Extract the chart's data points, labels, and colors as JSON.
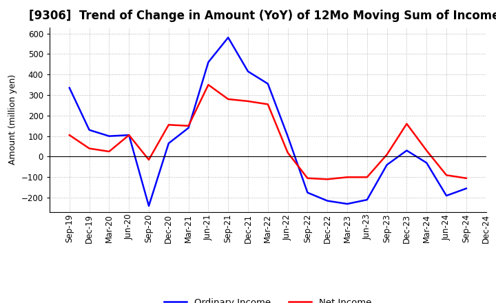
{
  "title": "[9306]  Trend of Change in Amount (YoY) of 12Mo Moving Sum of Incomes",
  "ylabel": "Amount (million yen)",
  "x_labels": [
    "Sep-19",
    "Dec-19",
    "Mar-20",
    "Jun-20",
    "Sep-20",
    "Dec-20",
    "Mar-21",
    "Jun-21",
    "Sep-21",
    "Dec-21",
    "Mar-22",
    "Jun-22",
    "Sep-22",
    "Dec-22",
    "Mar-23",
    "Jun-23",
    "Sep-23",
    "Dec-23",
    "Mar-24",
    "Jun-24",
    "Sep-24",
    "Dec-24"
  ],
  "ordinary_income": [
    335,
    130,
    100,
    105,
    -240,
    65,
    140,
    460,
    580,
    415,
    355,
    100,
    -175,
    -215,
    -230,
    -210,
    -40,
    30,
    -30,
    -190,
    -155,
    null
  ],
  "net_income": [
    105,
    40,
    25,
    105,
    -15,
    155,
    150,
    350,
    280,
    270,
    255,
    20,
    -105,
    -110,
    -100,
    -100,
    10,
    160,
    30,
    -90,
    -105,
    null
  ],
  "ordinary_income_color": "#0000ff",
  "net_income_color": "#ff0000",
  "ylim": [
    -270,
    630
  ],
  "yticks": [
    -200,
    -100,
    0,
    100,
    200,
    300,
    400,
    500,
    600
  ],
  "legend_labels": [
    "Ordinary Income",
    "Net Income"
  ],
  "background_color": "#ffffff",
  "grid_color": "#b0b0b0",
  "line_width": 1.8,
  "title_fontsize": 12,
  "ylabel_fontsize": 9,
  "tick_fontsize": 8.5
}
